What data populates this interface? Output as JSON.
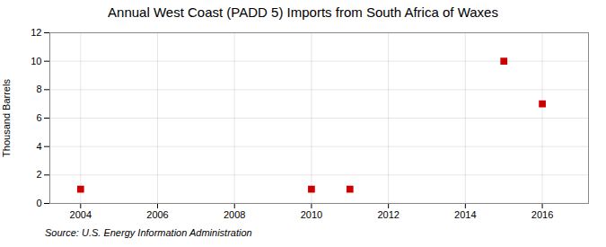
{
  "chart_data": {
    "type": "scatter",
    "title": "Annual West Coast (PADD 5) Imports from South Africa of Waxes",
    "ylabel": "Thousand Barrels",
    "source": "Source: U.S. Energy Information Administration",
    "x": [
      2004,
      2010,
      2011,
      2015,
      2016
    ],
    "values": [
      1,
      1,
      1,
      10,
      7
    ],
    "color": "#cc0000",
    "marker": "square",
    "xlim": [
      2003.2,
      2017.2
    ],
    "xticks": [
      2004,
      2006,
      2008,
      2010,
      2012,
      2014,
      2016
    ],
    "ylim": [
      0,
      12
    ],
    "yticks": [
      0,
      2,
      4,
      6,
      8,
      10,
      12
    ],
    "grid": true
  }
}
